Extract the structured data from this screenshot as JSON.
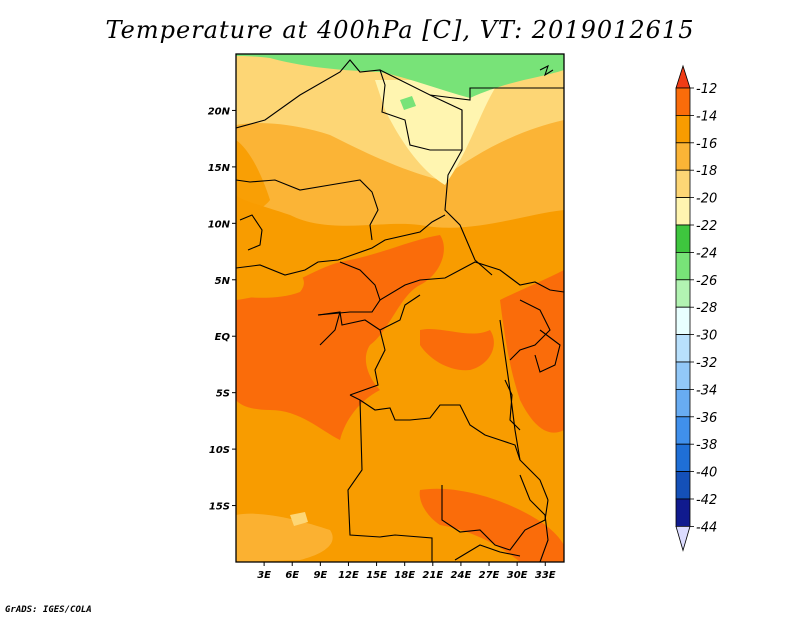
{
  "title": "Temperature at 400hPa [C], VT: 2019012615",
  "credit": "GrADS: IGES/COLA",
  "map": {
    "lon_range": [
      0,
      35
    ],
    "lat_range": [
      -20,
      25
    ],
    "lat_ticks": [
      {
        "value": 20,
        "label": "20N"
      },
      {
        "value": 15,
        "label": "15N"
      },
      {
        "value": 10,
        "label": "10N"
      },
      {
        "value": 5,
        "label": "5N"
      },
      {
        "value": 0,
        "label": "EQ"
      },
      {
        "value": -5,
        "label": "5S"
      },
      {
        "value": -10,
        "label": "10S"
      },
      {
        "value": -15,
        "label": "15S"
      }
    ],
    "lon_ticks": [
      {
        "value": 3,
        "label": "3E"
      },
      {
        "value": 6,
        "label": "6E"
      },
      {
        "value": 9,
        "label": "9E"
      },
      {
        "value": 12,
        "label": "12E"
      },
      {
        "value": 15,
        "label": "15E"
      },
      {
        "value": 18,
        "label": "18E"
      },
      {
        "value": 21,
        "label": "21E"
      },
      {
        "value": 24,
        "label": "24E"
      },
      {
        "value": 27,
        "label": "27E"
      },
      {
        "value": 30,
        "label": "30E"
      },
      {
        "value": 33,
        "label": "33E"
      }
    ]
  },
  "colorbar": {
    "labels": [
      "-12",
      "-14",
      "-16",
      "-18",
      "-20",
      "-22",
      "-24",
      "-26",
      "-28",
      "-30",
      "-32",
      "-34",
      "-36",
      "-38",
      "-40",
      "-42",
      "-44"
    ],
    "colors": [
      "#f03c16",
      "#fa6c0a",
      "#f89c00",
      "#fbb436",
      "#fdd675",
      "#fff5b0",
      "#3ec63e",
      "#78e378",
      "#b2f3b2",
      "#e8ffff",
      "#b8e0fc",
      "#92c8f8",
      "#68acf2",
      "#4090ec",
      "#1f6fd6",
      "#1450b8",
      "#101a8e",
      "#ffffff",
      "#dcdcff"
    ]
  }
}
